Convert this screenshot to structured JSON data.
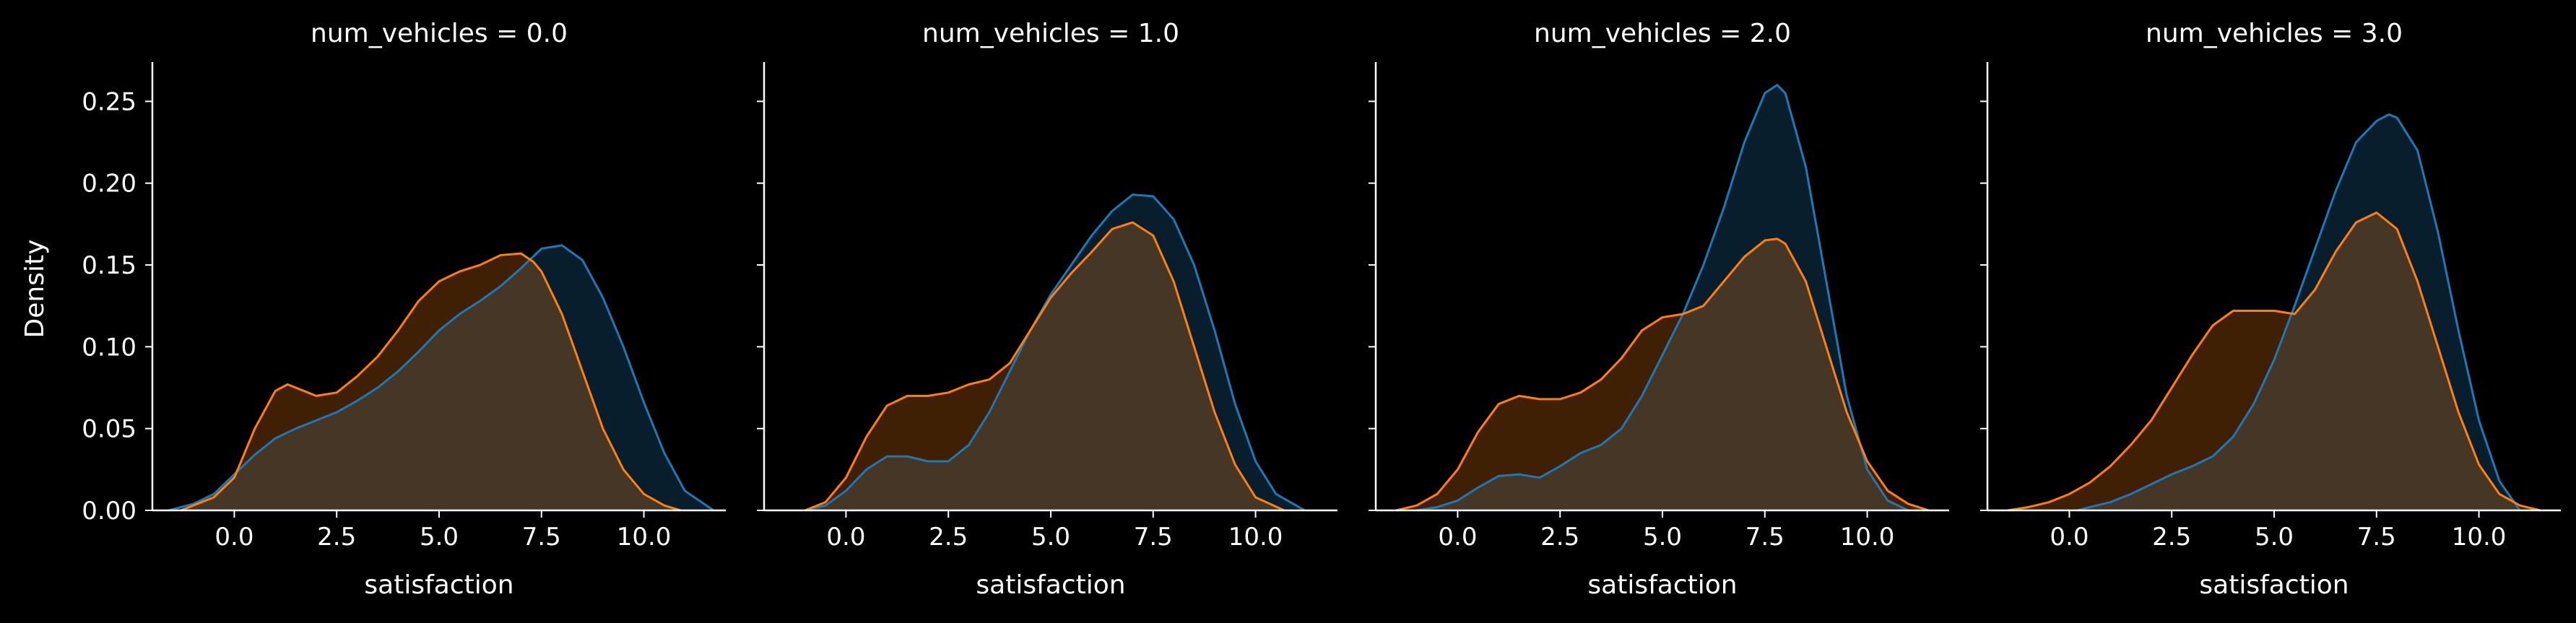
{
  "figure": {
    "background": "#000000",
    "text_color": "#ffffff"
  },
  "chart_data": {
    "type": "area",
    "ylabel": "Density",
    "xlabel": "satisfaction",
    "xlim": [
      -2.0,
      12.0
    ],
    "ylim": [
      0.0,
      0.274
    ],
    "x_ticks": [
      "0.0",
      "2.5",
      "5.0",
      "7.5",
      "10.0"
    ],
    "x_tick_values": [
      0.0,
      2.5,
      5.0,
      7.5,
      10.0
    ],
    "y_ticks": [
      "0.00",
      "0.05",
      "0.10",
      "0.15",
      "0.20",
      "0.25"
    ],
    "y_tick_values": [
      0.0,
      0.05,
      0.1,
      0.15,
      0.2,
      0.25
    ],
    "series_colors": [
      "#1f77b4",
      "#ff7f0e"
    ],
    "series_fills": [
      "rgba(31,119,180,0.25)",
      "rgba(255,127,14,0.25)"
    ],
    "panels": [
      {
        "title": "num_vehicles = 0.0",
        "series": [
          {
            "x": [
              -1.6,
              -1.0,
              -0.5,
              0.0,
              0.5,
              1.0,
              1.5,
              2.0,
              2.5,
              3.0,
              3.5,
              4.0,
              4.5,
              5.0,
              5.5,
              6.0,
              6.5,
              7.0,
              7.5,
              8.0,
              8.5,
              9.0,
              9.5,
              10.0,
              10.5,
              11.0,
              11.7
            ],
            "y": [
              0.0,
              0.004,
              0.01,
              0.022,
              0.034,
              0.044,
              0.05,
              0.055,
              0.06,
              0.067,
              0.075,
              0.085,
              0.097,
              0.11,
              0.12,
              0.128,
              0.137,
              0.148,
              0.16,
              0.162,
              0.153,
              0.13,
              0.1,
              0.066,
              0.035,
              0.012,
              0.0
            ]
          },
          {
            "x": [
              -1.3,
              -1.0,
              -0.5,
              0.0,
              0.5,
              1.0,
              1.3,
              1.7,
              2.0,
              2.5,
              3.0,
              3.5,
              4.0,
              4.5,
              5.0,
              5.5,
              6.0,
              6.5,
              7.0,
              7.3,
              7.5,
              8.0,
              8.5,
              9.0,
              9.5,
              10.0,
              10.5,
              10.9
            ],
            "y": [
              0.0,
              0.003,
              0.008,
              0.02,
              0.05,
              0.073,
              0.077,
              0.073,
              0.07,
              0.072,
              0.082,
              0.094,
              0.11,
              0.128,
              0.14,
              0.146,
              0.15,
              0.156,
              0.157,
              0.152,
              0.146,
              0.12,
              0.085,
              0.05,
              0.025,
              0.01,
              0.003,
              0.0
            ]
          }
        ]
      },
      {
        "title": "num_vehicles = 1.0",
        "series": [
          {
            "x": [
              -1.0,
              -0.5,
              0.0,
              0.5,
              1.0,
              1.5,
              2.0,
              2.5,
              3.0,
              3.5,
              4.0,
              4.5,
              5.0,
              5.5,
              6.0,
              6.5,
              7.0,
              7.5,
              8.0,
              8.5,
              9.0,
              9.5,
              10.0,
              10.5,
              11.2
            ],
            "y": [
              0.0,
              0.003,
              0.012,
              0.025,
              0.033,
              0.033,
              0.03,
              0.03,
              0.04,
              0.06,
              0.085,
              0.11,
              0.132,
              0.15,
              0.168,
              0.183,
              0.193,
              0.192,
              0.178,
              0.15,
              0.11,
              0.065,
              0.03,
              0.01,
              0.0
            ]
          },
          {
            "x": [
              -1.0,
              -0.5,
              0.0,
              0.5,
              1.0,
              1.5,
              2.0,
              2.5,
              3.0,
              3.5,
              4.0,
              4.5,
              5.0,
              5.5,
              6.0,
              6.5,
              7.0,
              7.5,
              8.0,
              8.5,
              9.0,
              9.5,
              10.0,
              10.7
            ],
            "y": [
              0.0,
              0.005,
              0.02,
              0.045,
              0.064,
              0.07,
              0.07,
              0.072,
              0.077,
              0.08,
              0.09,
              0.11,
              0.13,
              0.145,
              0.158,
              0.172,
              0.176,
              0.168,
              0.14,
              0.1,
              0.06,
              0.028,
              0.008,
              0.0
            ]
          }
        ]
      },
      {
        "title": "num_vehicles = 2.0",
        "series": [
          {
            "x": [
              -1.0,
              -0.5,
              0.0,
              0.5,
              1.0,
              1.5,
              2.0,
              2.5,
              3.0,
              3.5,
              4.0,
              4.5,
              5.0,
              5.5,
              6.0,
              6.5,
              7.0,
              7.5,
              7.8,
              8.0,
              8.5,
              9.0,
              9.5,
              10.0,
              10.5,
              11.0
            ],
            "y": [
              0.0,
              0.002,
              0.006,
              0.014,
              0.021,
              0.022,
              0.02,
              0.027,
              0.035,
              0.04,
              0.05,
              0.07,
              0.095,
              0.12,
              0.15,
              0.185,
              0.225,
              0.255,
              0.26,
              0.255,
              0.21,
              0.14,
              0.07,
              0.025,
              0.006,
              0.0
            ]
          },
          {
            "x": [
              -1.5,
              -1.0,
              -0.5,
              0.0,
              0.5,
              1.0,
              1.5,
              2.0,
              2.5,
              3.0,
              3.5,
              4.0,
              4.5,
              5.0,
              5.5,
              6.0,
              6.5,
              7.0,
              7.5,
              7.8,
              8.0,
              8.5,
              9.0,
              9.5,
              10.0,
              10.5,
              11.0,
              11.5
            ],
            "y": [
              0.0,
              0.003,
              0.01,
              0.025,
              0.048,
              0.065,
              0.07,
              0.068,
              0.068,
              0.072,
              0.08,
              0.093,
              0.11,
              0.118,
              0.12,
              0.125,
              0.14,
              0.155,
              0.165,
              0.166,
              0.163,
              0.14,
              0.1,
              0.06,
              0.03,
              0.012,
              0.004,
              0.0
            ]
          }
        ]
      },
      {
        "title": "num_vehicles = 3.0",
        "series": [
          {
            "x": [
              0.2,
              0.5,
              1.0,
              1.5,
              2.0,
              2.5,
              3.0,
              3.5,
              4.0,
              4.5,
              5.0,
              5.5,
              6.0,
              6.5,
              7.0,
              7.5,
              7.8,
              8.0,
              8.5,
              9.0,
              9.5,
              10.0,
              10.5,
              11.0
            ],
            "y": [
              0.0,
              0.002,
              0.005,
              0.01,
              0.016,
              0.022,
              0.027,
              0.033,
              0.045,
              0.065,
              0.092,
              0.125,
              0.16,
              0.195,
              0.225,
              0.238,
              0.242,
              0.24,
              0.22,
              0.17,
              0.11,
              0.055,
              0.018,
              0.0
            ]
          },
          {
            "x": [
              -1.5,
              -1.0,
              -0.5,
              0.0,
              0.5,
              1.0,
              1.5,
              2.0,
              2.5,
              3.0,
              3.5,
              4.0,
              4.5,
              5.0,
              5.5,
              6.0,
              6.5,
              7.0,
              7.5,
              8.0,
              8.5,
              9.0,
              9.5,
              10.0,
              10.5,
              11.0,
              11.5
            ],
            "y": [
              0.0,
              0.002,
              0.005,
              0.01,
              0.017,
              0.027,
              0.04,
              0.055,
              0.075,
              0.095,
              0.113,
              0.122,
              0.122,
              0.122,
              0.12,
              0.135,
              0.158,
              0.176,
              0.182,
              0.172,
              0.14,
              0.1,
              0.06,
              0.028,
              0.01,
              0.003,
              0.0
            ]
          }
        ]
      }
    ]
  }
}
